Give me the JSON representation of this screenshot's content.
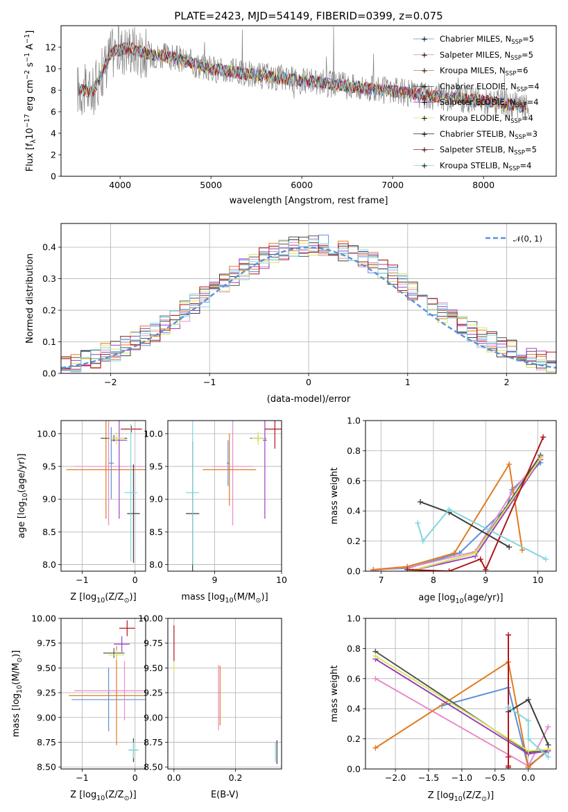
{
  "title": "PLATE=2423, MJD=54149, FIBERID=0399, z=0.075",
  "colors": {
    "Chabrier MILES": "#5b8fd9",
    "Salpeter MILES": "#e88ac8",
    "Kroupa MILES": "#e07b1f",
    "Chabrier ELODIE": "#555555",
    "Salpeter ELODIE": "#9b3fbf",
    "Kroupa ELODIE": "#d6e85a",
    "Chabrier STELIB": "#3c3c3c",
    "Salpeter STELIB": "#b0161b",
    "Kroupa STELIB": "#7fd6e0",
    "normal": "#5b8fd9",
    "data": "#808080"
  },
  "legend_spectrum": [
    {
      "pre": "Chabrier MILES, N",
      "sub": "SSP",
      "post": "=5",
      "key": "Chabrier MILES"
    },
    {
      "pre": "Salpeter MILES, N",
      "sub": "SSP",
      "post": "=5",
      "key": "Salpeter MILES"
    },
    {
      "pre": "Kroupa MILES, N",
      "sub": "SSP",
      "post": "=6",
      "key": "Kroupa MILES"
    },
    {
      "pre": "Chabrier ELODIE, N",
      "sub": "SSP",
      "post": "=4",
      "key": "Chabrier ELODIE"
    },
    {
      "pre": "Salpeter ELODIE, N",
      "sub": "SSP",
      "post": "=4",
      "key": "Salpeter ELODIE"
    },
    {
      "pre": "Kroupa ELODIE, N",
      "sub": "SSP",
      "post": "=4",
      "key": "Kroupa ELODIE"
    },
    {
      "pre": "Chabrier STELIB, N",
      "sub": "SSP",
      "post": "=3",
      "key": "Chabrier STELIB"
    },
    {
      "pre": "Salpeter STELIB, N",
      "sub": "SSP",
      "post": "=5",
      "key": "Salpeter STELIB"
    },
    {
      "pre": "Kroupa STELIB, N",
      "sub": "SSP",
      "post": "=4",
      "key": "Kroupa STELIB"
    }
  ],
  "chart_data": [
    {
      "type": "line",
      "id": "spectrum",
      "xlabel": "wavelength [Angstrom, rest frame]",
      "ylabel": {
        "pre": "Flux [f",
        "sub": "λ",
        "mid": "10",
        "sup1": "−17",
        "mid2": " erg cm",
        "sup2": "−2",
        "mid3": " s",
        "sup3": "−1",
        "mid4": " A",
        "sup4": "−1",
        "post": "]"
      },
      "xlim": [
        3350,
        8800
      ],
      "ylim": [
        0,
        14
      ],
      "xticks": [
        "4000",
        "5000",
        "6000",
        "7000",
        "8000"
      ],
      "yticks": [
        "0",
        "2",
        "4",
        "6",
        "8",
        "10",
        "12"
      ],
      "continuum": {
        "x": [
          3500,
          3700,
          3900,
          4100,
          4300,
          4600,
          5000,
          5500,
          6000,
          6500,
          7000,
          7500,
          8000,
          8500
        ],
        "y": [
          8.2,
          7.8,
          11.5,
          12.0,
          11.4,
          11.0,
          10.0,
          9.4,
          8.9,
          8.4,
          7.9,
          7.4,
          7.0,
          6.4
        ]
      }
    },
    {
      "type": "line",
      "id": "residual-histogram",
      "xlabel": "(data-model)/error",
      "ylabel": "Normed distribution",
      "xlim": [
        -2.5,
        2.5
      ],
      "ylim": [
        0,
        0.475
      ],
      "xticks": [
        "−2",
        "−1",
        "0",
        "1",
        "2"
      ],
      "yticks": [
        "0.0",
        "0.1",
        "0.2",
        "0.3",
        "0.4"
      ],
      "legend": "𝒩(0, 1)",
      "grid": true,
      "legend_position": "top-right"
    },
    {
      "type": "scatter",
      "id": "age-vs-metallicity",
      "xlabel": {
        "pre": "Z [log",
        "sub": "10",
        "post": "(Z/Z",
        "sub2": "⊙",
        "end": ")]"
      },
      "ylabel": {
        "pre": "age  [log",
        "sub": "10",
        "post": "(age/yr)]"
      },
      "xlim": [
        -1.4,
        0.2
      ],
      "ylim": [
        7.9,
        10.2
      ],
      "xticks": [
        "−1",
        "0"
      ],
      "yticks": [
        "8.0",
        "8.5",
        "9.0",
        "9.5",
        "10.0"
      ],
      "points": [
        {
          "s": "Chabrier MILES",
          "x": -0.45,
          "y": 9.55,
          "xe": 0.05,
          "ye": 0.55
        },
        {
          "s": "Salpeter MILES",
          "x": -0.5,
          "y": 9.5,
          "xe": 0.65,
          "ye": 0.9
        },
        {
          "s": "Kroupa MILES",
          "x": -0.55,
          "y": 9.45,
          "xe": 0.75,
          "ye": 0.75
        },
        {
          "s": "Chabrier ELODIE",
          "x": -0.4,
          "y": 9.93,
          "xe": 0.25,
          "ye": 0.05
        },
        {
          "s": "Salpeter ELODIE",
          "x": -0.3,
          "y": 9.9,
          "xe": 0.15,
          "ye": 1.2
        },
        {
          "s": "Kroupa ELODIE",
          "x": -0.35,
          "y": 9.93,
          "xe": 0.15,
          "ye": 0.1
        },
        {
          "s": "Chabrier STELIB",
          "x": -0.03,
          "y": 8.78,
          "xe": 0.12,
          "ye": 0.75
        },
        {
          "s": "Salpeter STELIB",
          "x": -0.07,
          "y": 10.07,
          "xe": 0.2,
          "ye": 0.05
        },
        {
          "s": "Kroupa STELIB",
          "x": -0.08,
          "y": 9.1,
          "xe": 0.12,
          "ye": 1.05
        }
      ]
    },
    {
      "type": "scatter",
      "id": "age-vs-mass",
      "xlabel": {
        "pre": "mass [log",
        "sub": "10",
        "post": "(M/M",
        "sub2": "⊙",
        "end": ")]"
      },
      "ylabel": "",
      "xlim": [
        8.3,
        10.0
      ],
      "ylim": [
        7.9,
        10.2
      ],
      "xticks": [
        "9",
        "10"
      ],
      "yticks": [
        "8.0",
        "8.5",
        "9.0",
        "9.5",
        "10.0"
      ],
      "points": [
        {
          "s": "Chabrier MILES",
          "x": 9.2,
          "y": 9.55,
          "xe": 0.02,
          "ye": 0.35
        },
        {
          "s": "Salpeter MILES",
          "x": 9.27,
          "y": 9.5,
          "xe": 0.3,
          "ye": 0.9
        },
        {
          "s": "Kroupa MILES",
          "x": 9.22,
          "y": 9.45,
          "xe": 0.4,
          "ye": 0.55
        },
        {
          "s": "Chabrier ELODIE",
          "x": 9.65,
          "y": 9.93,
          "xe": 0.12,
          "ye": 0.05
        },
        {
          "s": "Salpeter ELODIE",
          "x": 9.75,
          "y": 9.9,
          "xe": 0.03,
          "ye": 1.2
        },
        {
          "s": "Kroupa ELODIE",
          "x": 9.65,
          "y": 9.93,
          "xe": 0.1,
          "ye": 0.1
        },
        {
          "s": "Chabrier STELIB",
          "x": 8.67,
          "y": 8.78,
          "xe": 0.1,
          "ye": 1.1
        },
        {
          "s": "Salpeter STELIB",
          "x": 9.9,
          "y": 10.07,
          "xe": 0.15,
          "ye": 0.3
        },
        {
          "s": "Kroupa STELIB",
          "x": 8.67,
          "y": 9.1,
          "xe": 0.1,
          "ye": 1.1
        }
      ]
    },
    {
      "type": "line",
      "id": "mass-weight-vs-age",
      "xlabel": {
        "pre": "age  [log",
        "sub": "10",
        "post": "(age/yr)]"
      },
      "ylabel": "mass weight",
      "xlim": [
        6.7,
        10.35
      ],
      "ylim": [
        0,
        1.0
      ],
      "grid": true,
      "xticks": [
        "7",
        "8",
        "9",
        "10"
      ],
      "yticks": [
        "0.0",
        "0.2",
        "0.4",
        "0.6",
        "0.8",
        "1.0"
      ],
      "series": [
        {
          "s": "Chabrier MILES",
          "x": [
            6.85,
            7.5,
            8.5,
            9.4,
            9.5,
            10.05
          ],
          "y": [
            0.01,
            0.02,
            0.12,
            0.42,
            0.54,
            0.72
          ]
        },
        {
          "s": "Salpeter MILES",
          "x": [
            6.85,
            7.6,
            8.8,
            9.5,
            10.05
          ],
          "y": [
            0.005,
            0.03,
            0.13,
            0.52,
            0.76
          ]
        },
        {
          "s": "Kroupa MILES",
          "x": [
            6.85,
            7.5,
            8.4,
            9.45,
            9.7
          ],
          "y": [
            0.01,
            0.03,
            0.12,
            0.71,
            0.14
          ]
        },
        {
          "s": "Chabrier ELODIE",
          "x": [
            7.6,
            8.8,
            10.05
          ],
          "y": [
            0.005,
            0.12,
            0.77
          ]
        },
        {
          "s": "Salpeter ELODIE",
          "x": [
            7.6,
            8.8,
            10.05
          ],
          "y": [
            0.005,
            0.1,
            0.74
          ]
        },
        {
          "s": "Kroupa ELODIE",
          "x": [
            7.6,
            8.8,
            10.05
          ],
          "y": [
            0.005,
            0.12,
            0.75
          ]
        },
        {
          "s": "Chabrier STELIB",
          "x": [
            7.75,
            8.3,
            9.45
          ],
          "y": [
            0.46,
            0.39,
            0.16
          ]
        },
        {
          "s": "Salpeter STELIB",
          "x": [
            7.5,
            8.3,
            8.9,
            9.0,
            10.1
          ],
          "y": [
            0.01,
            0.0,
            0.08,
            0.01,
            0.89
          ]
        },
        {
          "s": "Kroupa STELIB",
          "x": [
            7.7,
            7.8,
            8.3,
            10.15
          ],
          "y": [
            0.32,
            0.2,
            0.41,
            0.08
          ]
        }
      ]
    },
    {
      "type": "scatter",
      "id": "mass-vs-metallicity",
      "xlabel": {
        "pre": "Z [log",
        "sub": "10",
        "post": "(Z/Z",
        "sub2": "⊙",
        "end": ")]"
      },
      "ylabel": {
        "pre": "mass [log",
        "sub": "10",
        "post": "(M/M",
        "sub2": "⊙",
        "end": ")]"
      },
      "xlim": [
        -1.4,
        0.2
      ],
      "ylim": [
        8.48,
        10.0
      ],
      "xticks": [
        "−1",
        "0"
      ],
      "yticks": [
        "8.50",
        "8.75",
        "9.00",
        "9.25",
        "9.50",
        "9.75",
        "10.00"
      ],
      "points": [
        {
          "s": "Chabrier MILES",
          "x": -0.5,
          "y": 9.18,
          "xe": 0.7,
          "ye": 0.32
        },
        {
          "s": "Salpeter MILES",
          "x": -0.2,
          "y": 9.27,
          "xe": 0.95,
          "ye": 0.3
        },
        {
          "s": "Kroupa MILES",
          "x": -0.35,
          "y": 9.22,
          "xe": 0.9,
          "ye": 0.5
        },
        {
          "s": "Chabrier ELODIE",
          "x": -0.4,
          "y": 9.65,
          "xe": 0.2,
          "ye": 0.05
        },
        {
          "s": "Salpeter ELODIE",
          "x": -0.25,
          "y": 9.74,
          "xe": 0.15,
          "ye": 0.08
        },
        {
          "s": "Kroupa ELODIE",
          "x": -0.35,
          "y": 9.63,
          "xe": 0.15,
          "ye": 0.05
        },
        {
          "s": "Chabrier STELIB",
          "x": -0.03,
          "y": 8.67,
          "xe": 0.08,
          "ye": 0.12
        },
        {
          "s": "Salpeter STELIB",
          "x": -0.15,
          "y": 9.9,
          "xe": 0.15,
          "ye": 0.08
        },
        {
          "s": "Kroupa STELIB",
          "x": -0.03,
          "y": 8.67,
          "xe": 0.1,
          "ye": 0.08
        }
      ]
    },
    {
      "type": "scatter",
      "id": "mass-vs-extinction",
      "xlabel": "E(B-V)",
      "ylabel": "",
      "xlim": [
        -0.02,
        0.35
      ],
      "ylim": [
        8.48,
        10.0
      ],
      "xticks": [
        "0.0",
        "0.2"
      ],
      "yticks": [
        "8.50",
        "8.75",
        "9.00",
        "9.25",
        "9.50",
        "9.75",
        "10.00"
      ],
      "points": [
        {
          "s": "Kroupa ELODIE",
          "x": 0.0,
          "y": 9.5,
          "xe": 0.0,
          "ye": 0.05
        },
        {
          "s": "Salpeter STELIB",
          "x": 0.0,
          "y": 9.75,
          "xe": 0.0,
          "ye": 0.18
        },
        {
          "s": "Salpeter MILES",
          "x": 0.145,
          "y": 9.2,
          "xe": 0.0,
          "ye": 0.33
        },
        {
          "s": "Kroupa MILES",
          "x": 0.15,
          "y": 9.22,
          "xe": 0.0,
          "ye": 0.3
        },
        {
          "s": "Kroupa STELIB",
          "x": 0.33,
          "y": 8.65,
          "xe": 0.0,
          "ye": 0.1
        },
        {
          "s": "Chabrier STELIB",
          "x": 0.335,
          "y": 8.65,
          "xe": 0.0,
          "ye": 0.12
        }
      ]
    },
    {
      "type": "line",
      "id": "mass-weight-vs-metallicity",
      "xlabel": {
        "pre": "Z [log",
        "sub": "10",
        "post": "(Z/Z",
        "sub2": "⊙",
        "end": ")]"
      },
      "ylabel": "mass weight",
      "xlim": [
        -2.45,
        0.42
      ],
      "ylim": [
        0,
        1.0
      ],
      "grid": true,
      "xticks": [
        "−2.0",
        "−1.5",
        "−1.0",
        "−0.5",
        "0.0"
      ],
      "yticks": [
        "0.0",
        "0.2",
        "0.4",
        "0.6",
        "0.8",
        "1.0"
      ],
      "series": [
        {
          "s": "Chabrier MILES",
          "x": [
            -1.3,
            -0.3,
            0.0,
            0.0,
            0.3
          ],
          "y": [
            0.42,
            0.54,
            0.01,
            0.02,
            0.12
          ]
        },
        {
          "s": "Salpeter MILES",
          "x": [
            -2.3,
            0.0,
            0.3
          ],
          "y": [
            0.6,
            0.02,
            0.28
          ]
        },
        {
          "s": "Kroupa MILES",
          "x": [
            -2.3,
            -0.3,
            0.0,
            0.3
          ],
          "y": [
            0.14,
            0.71,
            0.01,
            0.13
          ]
        },
        {
          "s": "Chabrier ELODIE",
          "x": [
            -2.3,
            0.0,
            0.3
          ],
          "y": [
            0.78,
            0.11,
            0.13
          ]
        },
        {
          "s": "Salpeter ELODIE",
          "x": [
            -2.3,
            0.0,
            0.3
          ],
          "y": [
            0.73,
            0.1,
            0.12
          ]
        },
        {
          "s": "Kroupa ELODIE",
          "x": [
            -2.3,
            0.0,
            0.3
          ],
          "y": [
            0.75,
            0.12,
            0.13
          ]
        },
        {
          "s": "Chabrier STELIB",
          "x": [
            -0.3,
            0.0,
            0.3
          ],
          "y": [
            0.38,
            0.46,
            0.16
          ]
        },
        {
          "s": "Salpeter STELIB",
          "x": [
            -0.3,
            -0.3,
            -0.3,
            -0.3
          ],
          "y": [
            0.01,
            0.89,
            0.08,
            0.02
          ]
        },
        {
          "s": "Kroupa STELIB",
          "x": [
            -0.3,
            0.0,
            0.0,
            0.3
          ],
          "y": [
            0.41,
            0.32,
            0.2,
            0.08
          ]
        }
      ]
    }
  ]
}
